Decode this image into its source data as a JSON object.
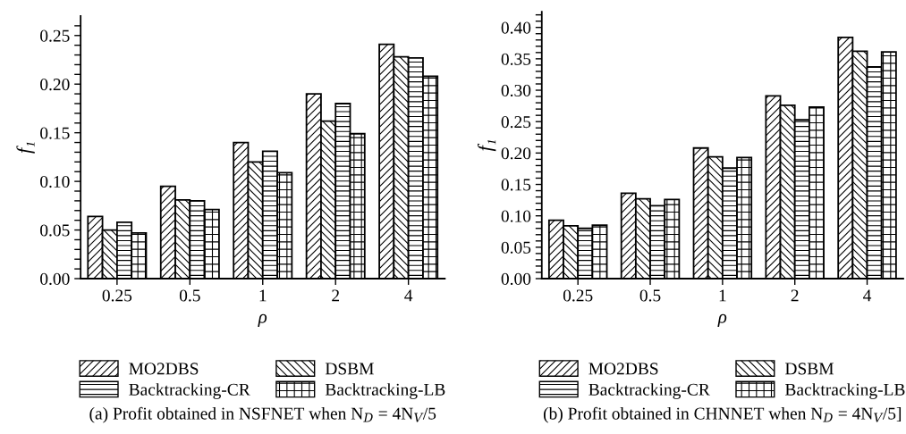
{
  "chart_data": [
    {
      "type": "bar",
      "title": "(a) Profit obtained in NSFNET when N$_{D}$ = 4N$_{V}$/5",
      "xlabel": "ρ",
      "ylabel": "f₁",
      "categories": [
        "0.25",
        "0.5",
        "1",
        "2",
        "4"
      ],
      "series": [
        {
          "name": "MO2DBS",
          "color": "#000000",
          "values": [
            0.064,
            0.095,
            0.14,
            0.19,
            0.241
          ]
        },
        {
          "name": "DSBM",
          "color": "#000000",
          "values": [
            0.05,
            0.081,
            0.12,
            0.162,
            0.228
          ]
        },
        {
          "name": "Backtracking-CR",
          "color": "#000000",
          "values": [
            0.058,
            0.08,
            0.131,
            0.18,
            0.227
          ]
        },
        {
          "name": "Backtracking-LB",
          "color": "#000000",
          "values": [
            0.047,
            0.071,
            0.109,
            0.149,
            0.208
          ]
        }
      ],
      "ylim": [
        0,
        0.27
      ],
      "yticks": [
        {
          "value": 0,
          "label": "0.00"
        },
        {
          "value": 0.01,
          "label": null
        },
        {
          "value": 0.02,
          "label": null
        },
        {
          "value": 0.03,
          "label": null
        },
        {
          "value": 0.04,
          "label": null
        },
        {
          "value": 0.05,
          "label": "0.05"
        },
        {
          "value": 0.06,
          "label": null
        },
        {
          "value": 0.07,
          "label": null
        },
        {
          "value": 0.08,
          "label": null
        },
        {
          "value": 0.09,
          "label": null
        },
        {
          "value": 0.1,
          "label": "0.10"
        },
        {
          "value": 0.11,
          "label": null
        },
        {
          "value": 0.12,
          "label": null
        },
        {
          "value": 0.13,
          "label": null
        },
        {
          "value": 0.14,
          "label": null
        },
        {
          "value": 0.15,
          "label": "0.15"
        },
        {
          "value": 0.16,
          "label": null
        },
        {
          "value": 0.17,
          "label": null
        },
        {
          "value": 0.18,
          "label": null
        },
        {
          "value": 0.19,
          "label": null
        },
        {
          "value": 0.2,
          "label": "0.20"
        },
        {
          "value": 0.21,
          "label": null
        },
        {
          "value": 0.22,
          "label": null
        },
        {
          "value": 0.23,
          "label": null
        },
        {
          "value": 0.24,
          "label": null
        },
        {
          "value": 0.25,
          "label": "0.25"
        },
        {
          "value": 0.26,
          "label": null
        }
      ],
      "legend": "bottom",
      "grid": false
    },
    {
      "type": "bar",
      "title": "(b) Profit obtained in CHNNET when N$_{D}$ = 4N$_{V}$/5]",
      "xlabel": "ρ",
      "ylabel": "f₁",
      "categories": [
        "0.25",
        "0.5",
        "1",
        "2",
        "4"
      ],
      "series": [
        {
          "name": "MO2DBS",
          "color": "#000000",
          "values": [
            0.093,
            0.136,
            0.208,
            0.291,
            0.384
          ]
        },
        {
          "name": "DSBM",
          "color": "#000000",
          "values": [
            0.084,
            0.127,
            0.194,
            0.276,
            0.362
          ]
        },
        {
          "name": "Backtracking-CR",
          "color": "#000000",
          "values": [
            0.08,
            0.116,
            0.176,
            0.253,
            0.337
          ]
        },
        {
          "name": "Backtracking-LB",
          "color": "#000000",
          "values": [
            0.085,
            0.126,
            0.193,
            0.273,
            0.361
          ]
        }
      ],
      "ylim": [
        0,
        0.425
      ],
      "yticks": [
        {
          "value": 0,
          "label": "0.00"
        },
        {
          "value": 0.01,
          "label": null
        },
        {
          "value": 0.02,
          "label": null
        },
        {
          "value": 0.03,
          "label": null
        },
        {
          "value": 0.04,
          "label": null
        },
        {
          "value": 0.05,
          "label": "0.05"
        },
        {
          "value": 0.06,
          "label": null
        },
        {
          "value": 0.07,
          "label": null
        },
        {
          "value": 0.08,
          "label": null
        },
        {
          "value": 0.09,
          "label": null
        },
        {
          "value": 0.1,
          "label": "0.10"
        },
        {
          "value": 0.11,
          "label": null
        },
        {
          "value": 0.12,
          "label": null
        },
        {
          "value": 0.13,
          "label": null
        },
        {
          "value": 0.14,
          "label": null
        },
        {
          "value": 0.15,
          "label": "0.15"
        },
        {
          "value": 0.16,
          "label": null
        },
        {
          "value": 0.17,
          "label": null
        },
        {
          "value": 0.18,
          "label": null
        },
        {
          "value": 0.19,
          "label": null
        },
        {
          "value": 0.2,
          "label": "0.20"
        },
        {
          "value": 0.21,
          "label": null
        },
        {
          "value": 0.22,
          "label": null
        },
        {
          "value": 0.23,
          "label": null
        },
        {
          "value": 0.24,
          "label": null
        },
        {
          "value": 0.25,
          "label": "0.25"
        },
        {
          "value": 0.26,
          "label": null
        },
        {
          "value": 0.27,
          "label": null
        },
        {
          "value": 0.28,
          "label": null
        },
        {
          "value": 0.29,
          "label": null
        },
        {
          "value": 0.3,
          "label": "0.30"
        },
        {
          "value": 0.31,
          "label": null
        },
        {
          "value": 0.32,
          "label": null
        },
        {
          "value": 0.33,
          "label": null
        },
        {
          "value": 0.34,
          "label": null
        },
        {
          "value": 0.35,
          "label": "0.35"
        },
        {
          "value": 0.36,
          "label": null
        },
        {
          "value": 0.37,
          "label": null
        },
        {
          "value": 0.38,
          "label": null
        },
        {
          "value": 0.39,
          "label": null
        },
        {
          "value": 0.4,
          "label": "0.40"
        },
        {
          "value": 0.41,
          "label": null
        },
        {
          "value": 0.42,
          "label": null
        }
      ],
      "legend": "bottom",
      "grid": false
    }
  ]
}
